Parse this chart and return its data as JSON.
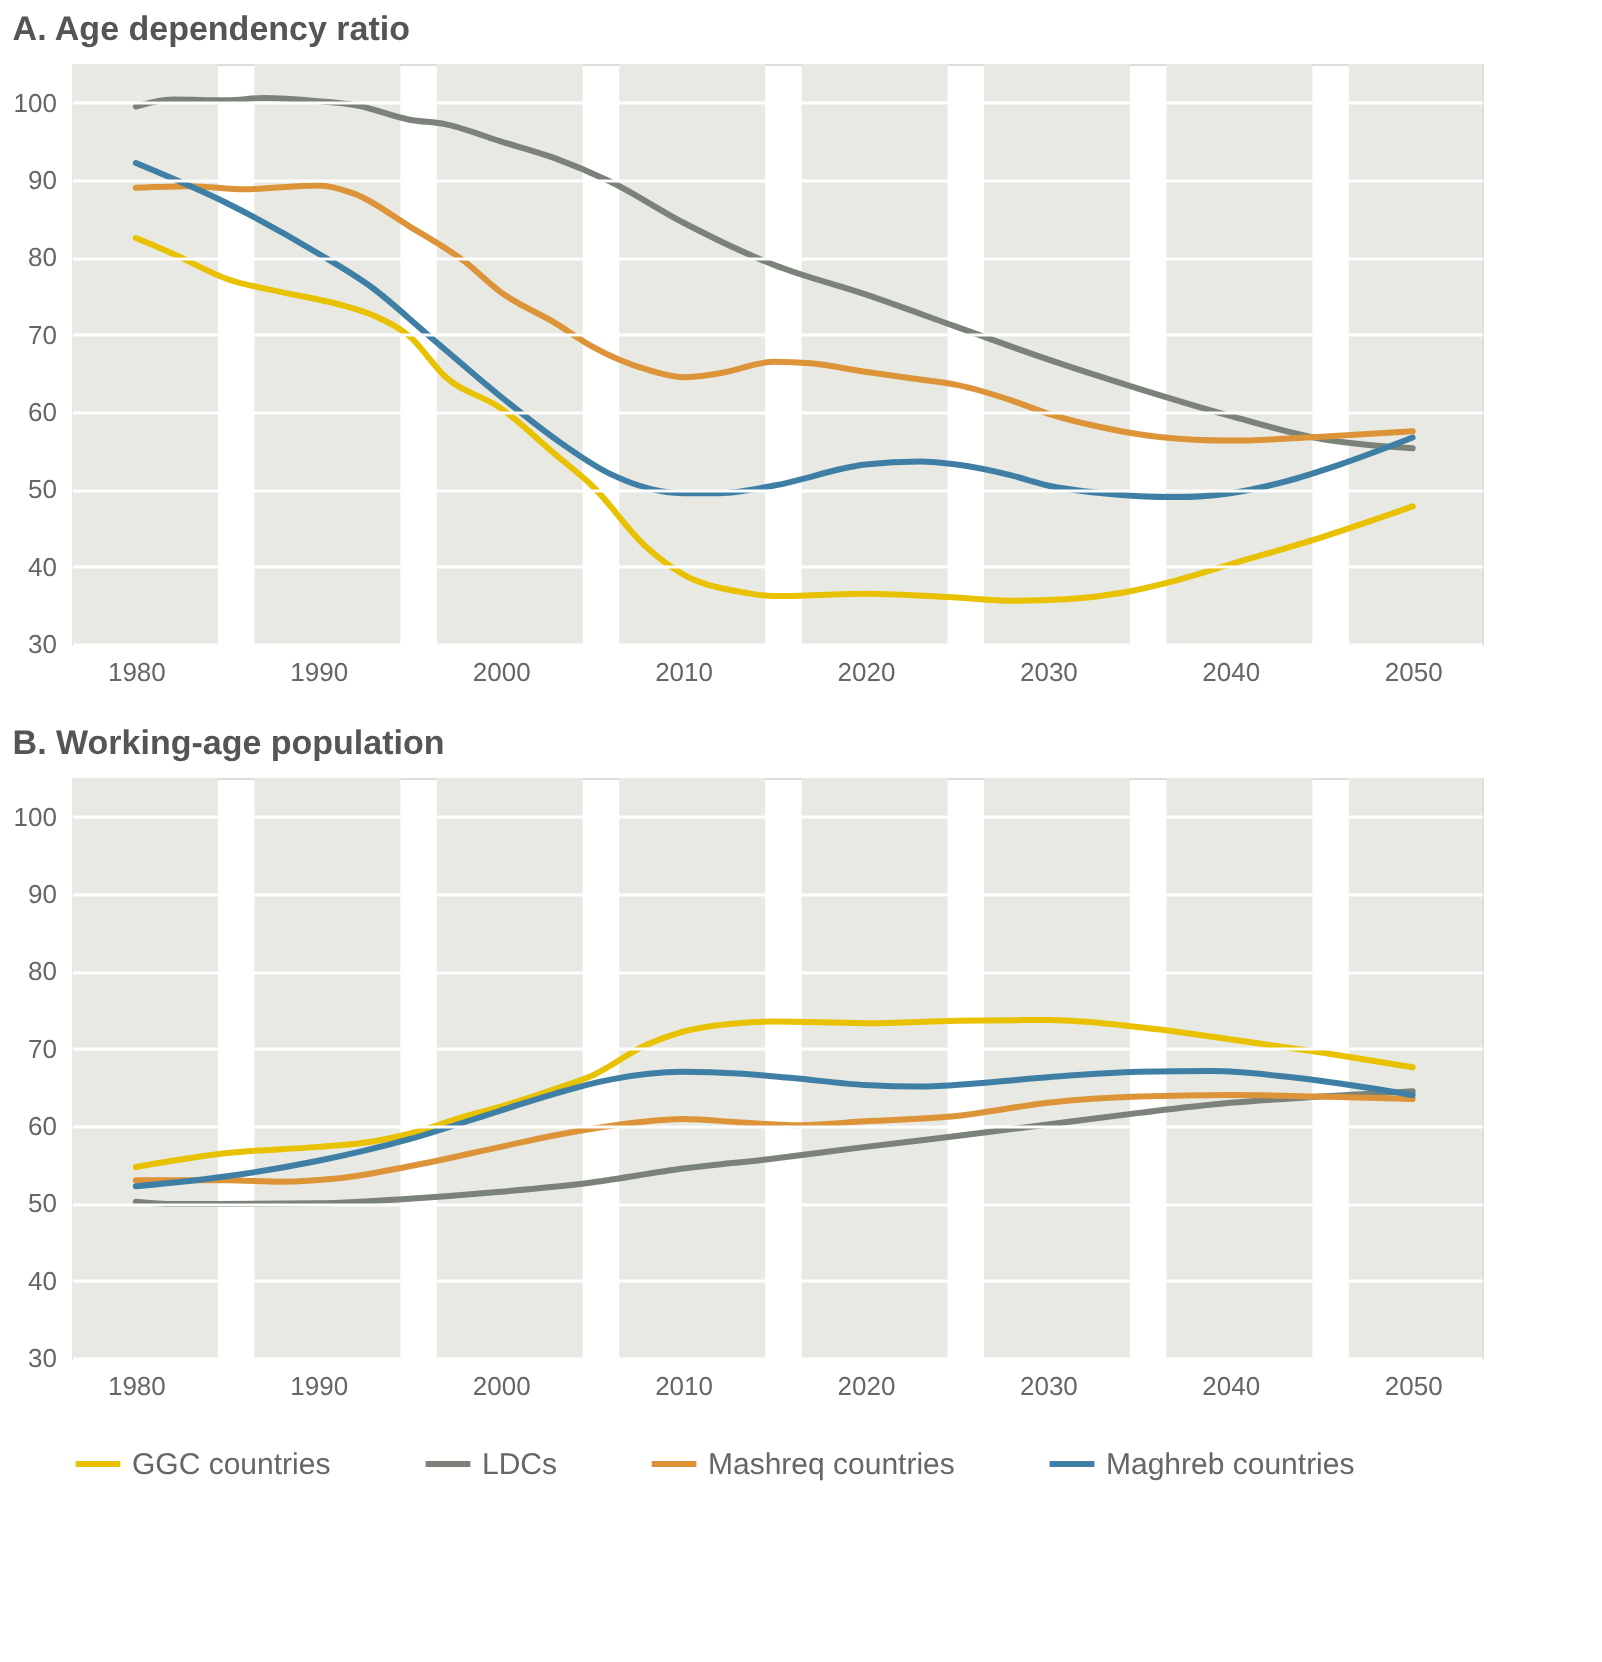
{
  "chart_data": [
    {
      "type": "line",
      "title": "A. Age dependency ratio",
      "xlim": [
        1976.5,
        2053.8
      ],
      "xticks": [
        1980,
        1990,
        2000,
        2010,
        2020,
        2030,
        2040,
        2050
      ],
      "ylim": [
        30,
        105
      ],
      "yticks": [
        30,
        40,
        50,
        60,
        70,
        80,
        90,
        100
      ],
      "grid": "y",
      "legend": "bottom",
      "marker": "none",
      "line_style": "solid",
      "bands": [
        {
          "axis": "x",
          "from": 1976.5,
          "to": 1984.5,
          "color": "#e7e9e2"
        },
        {
          "axis": "x",
          "from": 1986.5,
          "to": 1994.5,
          "color": "#e7e9e2"
        },
        {
          "axis": "x",
          "from": 1996.5,
          "to": 2004.5,
          "color": "#e7e9e2"
        },
        {
          "axis": "x",
          "from": 2006.5,
          "to": 2014.5,
          "color": "#e7e9e2"
        },
        {
          "axis": "x",
          "from": 2016.5,
          "to": 2024.5,
          "color": "#e7e9e2"
        },
        {
          "axis": "x",
          "from": 2026.5,
          "to": 2034.5,
          "color": "#e7e9e2"
        },
        {
          "axis": "x",
          "from": 2036.5,
          "to": 2044.5,
          "color": "#e7e9e2"
        },
        {
          "axis": "x",
          "from": 2046.5,
          "to": 2053.8,
          "color": "#e7e9e2"
        }
      ],
      "series": [
        {
          "name": "GGC countries",
          "color": "#e8c100",
          "x": [
            1980,
            1982,
            1985,
            1988,
            1991,
            1993,
            1995,
            1997,
            2000,
            2003,
            2005,
            2008,
            2010,
            2013,
            2015,
            2020,
            2025,
            2028,
            2031,
            2034,
            2037,
            2040,
            2045,
            2050
          ],
          "values": [
            82.5,
            80.5,
            77.2,
            75.5,
            74,
            72.5,
            69.8,
            64.5,
            60.5,
            54.5,
            50.5,
            42.5,
            39,
            36.8,
            36.2,
            36.5,
            36,
            35.6,
            35.8,
            36.6,
            38.2,
            40.3,
            43.8,
            47.8
          ]
        },
        {
          "name": "LDCs",
          "color": "#7a8279",
          "x": [
            1980,
            1982,
            1985,
            1987,
            1990,
            1992,
            1995,
            1997,
            2000,
            2003,
            2006,
            2010,
            2015,
            2020,
            2025,
            2030,
            2035,
            2040,
            2045,
            2050
          ],
          "values": [
            99.5,
            100.4,
            100.3,
            100.6,
            100.2,
            99.7,
            97.8,
            97.2,
            95,
            92.8,
            89.8,
            84.5,
            79,
            75.2,
            71,
            66.8,
            63,
            59.5,
            56.5,
            55.3
          ]
        },
        {
          "name": "Mashreq countries",
          "color": "#dd9338",
          "x": [
            1980,
            1983,
            1986,
            1990,
            1992,
            1995,
            1998,
            2000,
            2003,
            2005,
            2008,
            2010,
            2012,
            2015,
            2017,
            2020,
            2023,
            2025,
            2028,
            2030,
            2033,
            2036,
            2040,
            2045,
            2050
          ],
          "values": [
            89,
            89.2,
            88.8,
            89.3,
            88.2,
            84,
            79.5,
            75.5,
            71.5,
            68.5,
            65.5,
            64.5,
            65,
            66.5,
            66.3,
            65.2,
            64.2,
            63.5,
            61.5,
            59.8,
            58,
            56.8,
            56.3,
            56.8,
            57.5
          ]
        },
        {
          "name": "Maghreb countries",
          "color": "#3f7fa6",
          "x": [
            1980,
            1985,
            1990,
            1993,
            1996,
            2000,
            2003,
            2006,
            2010,
            2012,
            2015,
            2020,
            2023,
            2025,
            2028,
            2030,
            2033,
            2037,
            2040,
            2043,
            2046,
            2050
          ],
          "values": [
            92.2,
            87,
            80.5,
            76,
            70,
            62,
            56.5,
            52,
            49.5,
            49.5,
            50.5,
            53.2,
            53.6,
            53.2,
            51.8,
            50.5,
            49.5,
            49,
            49.5,
            51,
            53.2,
            56.7
          ]
        }
      ]
    },
    {
      "type": "line",
      "title": "B. Working-age population",
      "xlim": [
        1976.5,
        2053.8
      ],
      "xticks": [
        1980,
        1990,
        2000,
        2010,
        2020,
        2030,
        2040,
        2050
      ],
      "ylim": [
        30,
        105
      ],
      "yticks": [
        30,
        40,
        50,
        60,
        70,
        80,
        90,
        100
      ],
      "grid": "y",
      "legend": "bottom",
      "marker": "none",
      "line_style": "solid",
      "bands": [
        {
          "axis": "x",
          "from": 1976.5,
          "to": 1984.5,
          "color": "#e7e9e2"
        },
        {
          "axis": "x",
          "from": 1986.5,
          "to": 1994.5,
          "color": "#e7e9e2"
        },
        {
          "axis": "x",
          "from": 1996.5,
          "to": 2004.5,
          "color": "#e7e9e2"
        },
        {
          "axis": "x",
          "from": 2006.5,
          "to": 2014.5,
          "color": "#e7e9e2"
        },
        {
          "axis": "x",
          "from": 2016.5,
          "to": 2024.5,
          "color": "#e7e9e2"
        },
        {
          "axis": "x",
          "from": 2026.5,
          "to": 2034.5,
          "color": "#e7e9e2"
        },
        {
          "axis": "x",
          "from": 2036.5,
          "to": 2044.5,
          "color": "#e7e9e2"
        },
        {
          "axis": "x",
          "from": 2046.5,
          "to": 2053.8,
          "color": "#e7e9e2"
        }
      ],
      "series": [
        {
          "name": "GGC countries",
          "color": "#e8c100",
          "x": [
            1980,
            1985,
            1990,
            1993,
            1995,
            1998,
            2000,
            2003,
            2005,
            2008,
            2010,
            2013,
            2015,
            2020,
            2025,
            2030,
            2033,
            2036,
            2040,
            2045,
            2050
          ],
          "values": [
            54.7,
            56.5,
            57.3,
            58,
            59,
            61.2,
            62.5,
            64.8,
            66.5,
            70.5,
            72.2,
            73.3,
            73.5,
            73.3,
            73.6,
            73.7,
            73.3,
            72.5,
            71.2,
            69.5,
            67.6
          ]
        },
        {
          "name": "LDCs",
          "color": "#7a8279",
          "x": [
            1980,
            1982,
            1990,
            1995,
            2000,
            2005,
            2010,
            2015,
            2020,
            2025,
            2030,
            2035,
            2040,
            2045,
            2050
          ],
          "values": [
            50.2,
            49.9,
            50,
            50.6,
            51.5,
            52.7,
            54.5,
            55.8,
            57.3,
            58.7,
            60.2,
            61.7,
            63,
            63.8,
            64.5
          ]
        },
        {
          "name": "Mashreq countries",
          "color": "#dd9338",
          "x": [
            1980,
            1985,
            1988,
            1991,
            1995,
            2000,
            2003,
            2006,
            2010,
            2013,
            2016,
            2020,
            2025,
            2030,
            2035,
            2040,
            2045,
            2050
          ],
          "values": [
            53,
            53,
            52.8,
            53.2,
            54.8,
            57.3,
            58.8,
            60,
            60.9,
            60.5,
            60.1,
            60.6,
            61.3,
            63,
            63.8,
            64,
            63.8,
            63.5
          ]
        },
        {
          "name": "Maghreb countries",
          "color": "#3f7fa6",
          "x": [
            1980,
            1985,
            1990,
            1995,
            2000,
            2003,
            2006,
            2010,
            2013,
            2016,
            2020,
            2023,
            2026,
            2030,
            2035,
            2039,
            2043,
            2046,
            2050
          ],
          "values": [
            52.2,
            53.5,
            55.5,
            58.3,
            62,
            64.2,
            66,
            67,
            66.8,
            66.2,
            65.3,
            65.1,
            65.5,
            66.3,
            67,
            67.1,
            66.4,
            65.5,
            64
          ]
        }
      ]
    }
  ]
}
